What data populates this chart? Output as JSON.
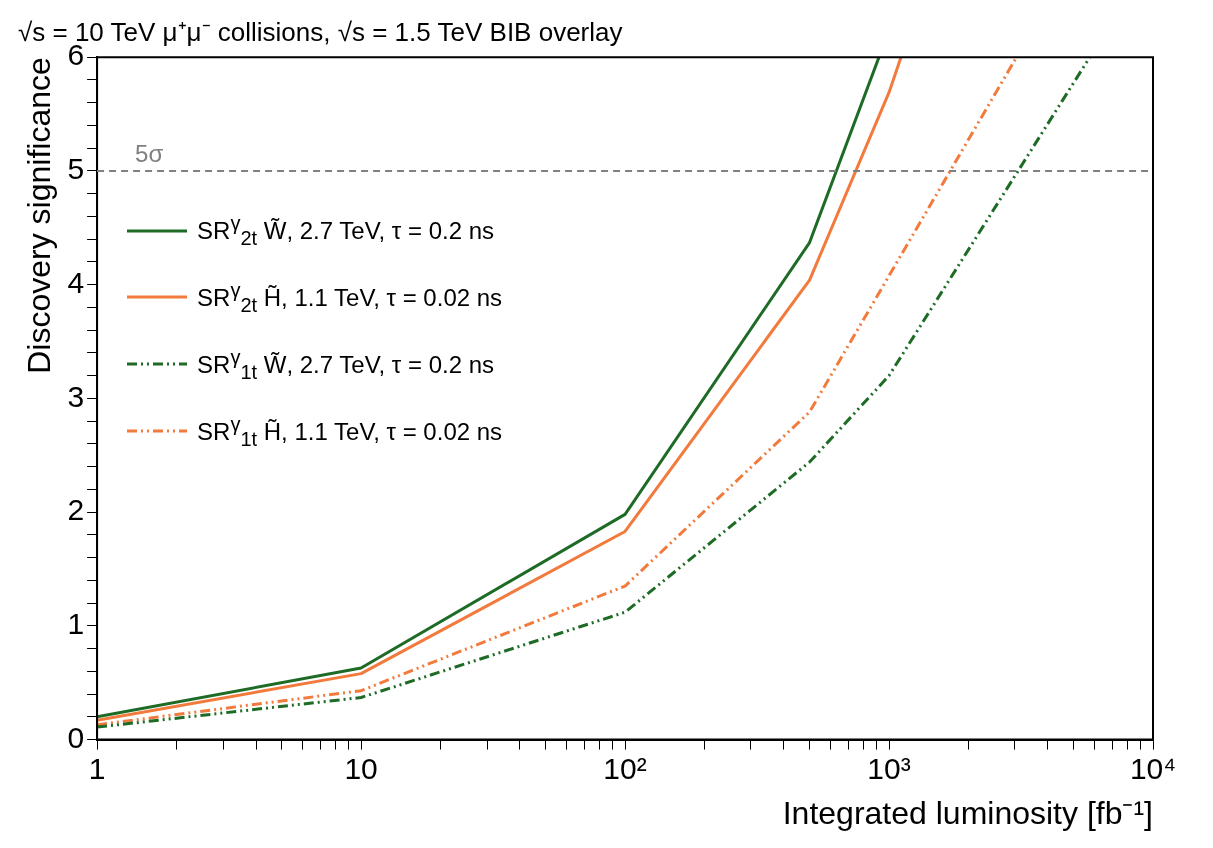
{
  "chart_data": {
    "type": "line",
    "title": "√s = 10 TeV μ⁺μ⁻ collisions, √s = 1.5 TeV BIB overlay",
    "xlabel": "Integrated luminosity [fb⁻¹]",
    "ylabel": "Discovery significance",
    "log": "x",
    "grid": false,
    "legend": "top left",
    "marker": "none",
    "xlim": [
      1,
      10000
    ],
    "ylim": [
      0,
      6
    ],
    "xticks": [
      {
        "value": 1,
        "label": "1"
      },
      {
        "value": 2,
        "label": null
      },
      {
        "value": 3,
        "label": null
      },
      {
        "value": 4,
        "label": null
      },
      {
        "value": 5,
        "label": null
      },
      {
        "value": 6,
        "label": null
      },
      {
        "value": 7,
        "label": null
      },
      {
        "value": 8,
        "label": null
      },
      {
        "value": 9,
        "label": null
      },
      {
        "value": 10,
        "label": "10"
      },
      {
        "value": 20,
        "label": null
      },
      {
        "value": 30,
        "label": null
      },
      {
        "value": 40,
        "label": null
      },
      {
        "value": 50,
        "label": null
      },
      {
        "value": 60,
        "label": null
      },
      {
        "value": 70,
        "label": null
      },
      {
        "value": 80,
        "label": null
      },
      {
        "value": 90,
        "label": null
      },
      {
        "value": 100,
        "label": "10²"
      },
      {
        "value": 200,
        "label": null
      },
      {
        "value": 300,
        "label": null
      },
      {
        "value": 400,
        "label": null
      },
      {
        "value": 500,
        "label": null
      },
      {
        "value": 600,
        "label": null
      },
      {
        "value": 700,
        "label": null
      },
      {
        "value": 800,
        "label": null
      },
      {
        "value": 900,
        "label": null
      },
      {
        "value": 1000,
        "label": "10³"
      },
      {
        "value": 2000,
        "label": null
      },
      {
        "value": 3000,
        "label": null
      },
      {
        "value": 4000,
        "label": null
      },
      {
        "value": 5000,
        "label": null
      },
      {
        "value": 6000,
        "label": null
      },
      {
        "value": 7000,
        "label": null
      },
      {
        "value": 8000,
        "label": null
      },
      {
        "value": 9000,
        "label": null
      },
      {
        "value": 10000,
        "label": "10⁴"
      }
    ],
    "yticks": [
      0,
      {
        "value": 0.2,
        "label": null
      },
      {
        "value": 0.4,
        "label": null
      },
      {
        "value": 0.6,
        "label": null
      },
      {
        "value": 0.8,
        "label": null
      },
      1,
      {
        "value": 1.2,
        "label": null
      },
      {
        "value": 1.4,
        "label": null
      },
      {
        "value": 1.6,
        "label": null
      },
      {
        "value": 1.8,
        "label": null
      },
      2,
      {
        "value": 2.2,
        "label": null
      },
      {
        "value": 2.4,
        "label": null
      },
      {
        "value": 2.6,
        "label": null
      },
      {
        "value": 2.8,
        "label": null
      },
      3,
      {
        "value": 3.2,
        "label": null
      },
      {
        "value": 3.4,
        "label": null
      },
      {
        "value": 3.6,
        "label": null
      },
      {
        "value": 3.8,
        "label": null
      },
      4,
      {
        "value": 4.2,
        "label": null
      },
      {
        "value": 4.4,
        "label": null
      },
      {
        "value": 4.6,
        "label": null
      },
      {
        "value": 4.8,
        "label": null
      },
      5,
      {
        "value": 5.2,
        "label": null
      },
      {
        "value": 5.4,
        "label": null
      },
      {
        "value": 5.6,
        "label": null
      },
      {
        "value": 5.8,
        "label": null
      },
      6
    ],
    "ref_lines": [
      {
        "axis": "y",
        "value": 5,
        "label": "5σ",
        "color": "#808080",
        "line_style": "dashed"
      }
    ],
    "series": [
      {
        "name": "SR$^{γ}$$_{2t}$ W̃, 2.7 TeV, τ = 0.2 ns",
        "color": "#1e6b26",
        "line_style": "solid",
        "x": [
          1,
          10,
          100,
          500,
          916
        ],
        "values": [
          0.2,
          0.63,
          1.98,
          4.37,
          6
        ]
      },
      {
        "name": "SR$^{γ}$$_{2t}$ H̃, 1.1 TeV, τ = 0.02 ns",
        "color": "#f27a3c",
        "line_style": "solid",
        "x": [
          1,
          10,
          100,
          500,
          1000,
          1110
        ],
        "values": [
          0.17,
          0.58,
          1.83,
          4.04,
          5.69,
          6
        ]
      },
      {
        "name": "SR$^{γ}$$_{1t}$ W̃, 2.7 TeV, τ = 0.2 ns",
        "color": "#1e6b26",
        "line_style": "dashed",
        "x": [
          1,
          10,
          100,
          500,
          1000,
          5760
        ],
        "values": [
          0.11,
          0.37,
          1.12,
          2.44,
          3.2,
          6
        ]
      },
      {
        "name": "SR$^{γ}$$_{1t}$ H̃, 1.1 TeV, τ = 0.02 ns",
        "color": "#f27a3c",
        "line_style": "dashed",
        "x": [
          1,
          10,
          100,
          500,
          3040
        ],
        "values": [
          0.13,
          0.43,
          1.35,
          2.88,
          6
        ]
      }
    ]
  }
}
